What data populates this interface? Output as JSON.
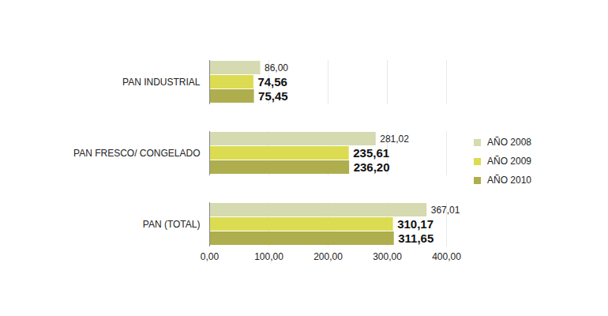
{
  "chart_data": {
    "type": "bar",
    "orientation": "horizontal",
    "categories": [
      "PAN INDUSTRIAL",
      "PAN FRESCO/ CONGELADO",
      "PAN (TOTAL)"
    ],
    "series": [
      {
        "name": "AÑO 2008",
        "color": "#d5dab1",
        "values": [
          86.0,
          281.02,
          367.01
        ],
        "value_labels": [
          "86,00",
          "281,02",
          "367,01"
        ]
      },
      {
        "name": "AÑO 2009",
        "color": "#dcdc52",
        "values": [
          74.56,
          235.61,
          310.17
        ],
        "value_labels": [
          "74,56",
          "235,61",
          "310,17"
        ]
      },
      {
        "name": "AÑO 2010",
        "color": "#aeae4e",
        "values": [
          75.45,
          236.2,
          311.65
        ],
        "value_labels": [
          "75,45",
          "236,20",
          "311,65"
        ]
      }
    ],
    "xlim": [
      0,
      400
    ],
    "xticks": [
      {
        "value": 0,
        "label": "0,00"
      },
      {
        "value": 100,
        "label": "100,00"
      },
      {
        "value": 200,
        "label": "200,00"
      },
      {
        "value": 300,
        "label": "300,00"
      },
      {
        "value": 400,
        "label": "400,00"
      }
    ],
    "grid": true,
    "legend": "right",
    "data_labels": true
  }
}
